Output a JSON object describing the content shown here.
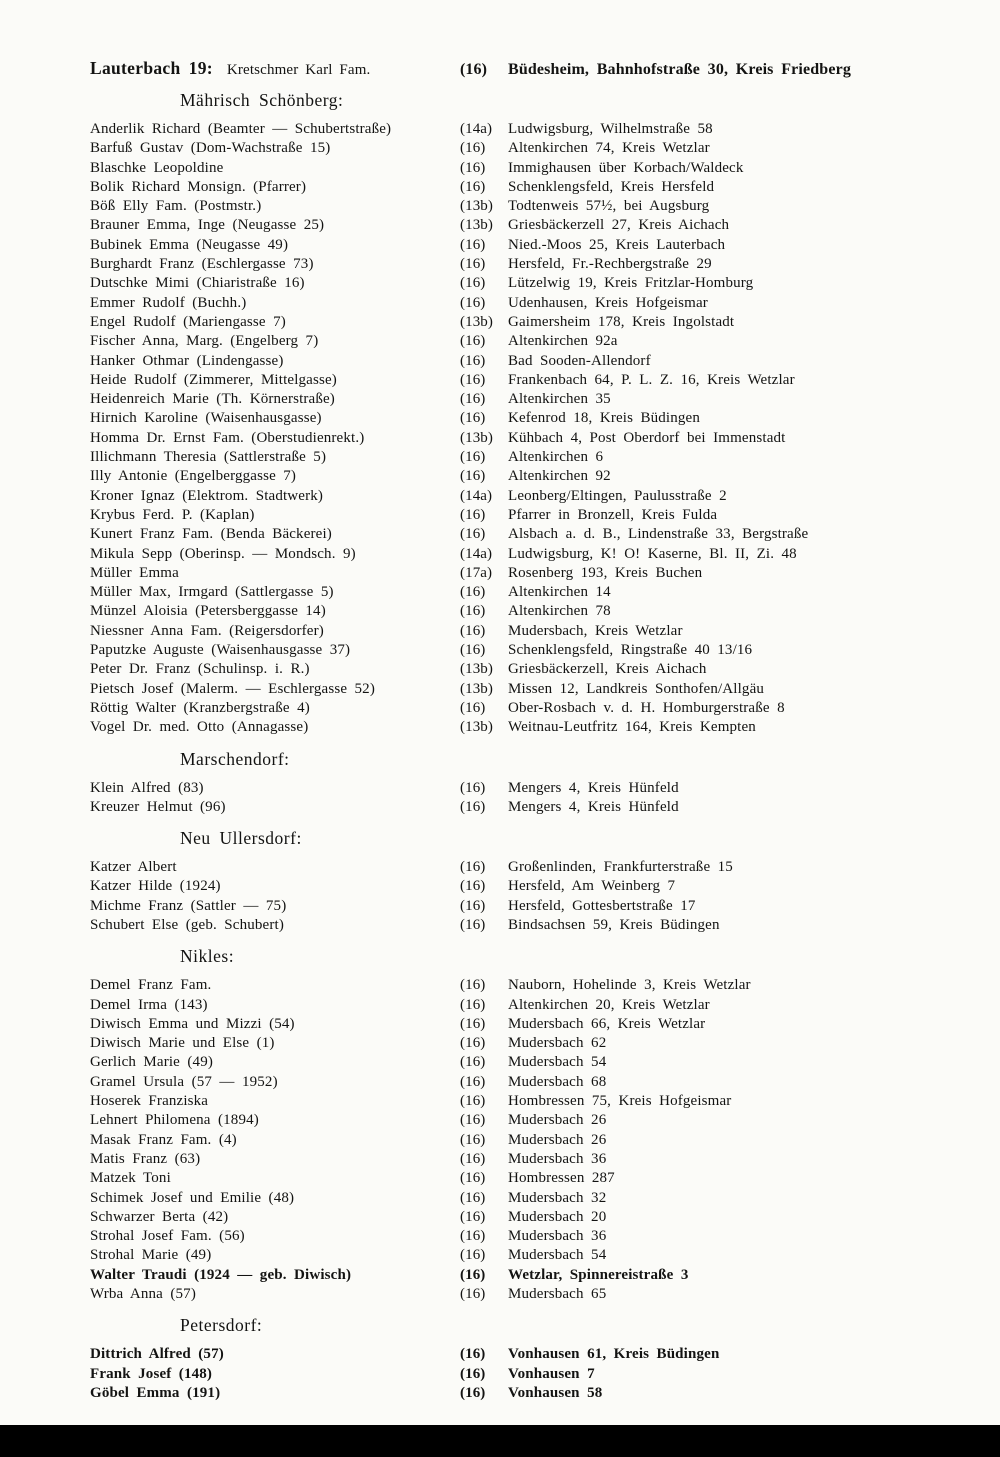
{
  "page": {
    "header": {
      "place_label": "Lauterbach 19:",
      "name": "Kretschmer Karl Fam.",
      "zone": "(16)",
      "address": "Büdesheim, Bahnhofstraße 30, Kreis Friedberg"
    },
    "sections": [
      {
        "title": "Mährisch Schönberg:",
        "entries": [
          {
            "name": "Anderlik Richard (Beamter — Schubertstraße)",
            "zone": "(14a)",
            "address": "Ludwigsburg, Wilhelmstraße 58"
          },
          {
            "name": "Barfuß Gustav (Dom-Wachstraße 15)",
            "zone": "(16)",
            "address": "Altenkirchen 74, Kreis Wetzlar"
          },
          {
            "name": "Blaschke Leopoldine",
            "zone": "(16)",
            "address": "Immighausen über Korbach/Waldeck"
          },
          {
            "name": "Bolik Richard Monsign. (Pfarrer)",
            "zone": "(16)",
            "address": "Schenklengsfeld, Kreis Hersfeld"
          },
          {
            "name": "Böß Elly Fam. (Postmstr.)",
            "zone": "(13b)",
            "address": "Todtenweis 57½, bei Augsburg"
          },
          {
            "name": "Brauner Emma, Inge (Neugasse 25)",
            "zone": "(13b)",
            "address": "Griesbäckerzell 27, Kreis Aichach"
          },
          {
            "name": "Bubinek Emma (Neugasse 49)",
            "zone": "(16)",
            "address": "Nied.-Moos 25, Kreis Lauterbach"
          },
          {
            "name": "Burghardt Franz (Eschlergasse 73)",
            "zone": "(16)",
            "address": "Hersfeld, Fr.-Rechbergstraße 29"
          },
          {
            "name": "Dutschke Mimi (Chiaristraße 16)",
            "zone": "(16)",
            "address": "Lützelwig 19, Kreis Fritzlar-Homburg"
          },
          {
            "name": "Emmer Rudolf (Buchh.)",
            "zone": "(16)",
            "address": "Udenhausen, Kreis Hofgeismar"
          },
          {
            "name": "Engel Rudolf (Mariengasse 7)",
            "zone": "(13b)",
            "address": "Gaimersheim 178, Kreis Ingolstadt"
          },
          {
            "name": "Fischer Anna, Marg. (Engelberg 7)",
            "zone": "(16)",
            "address": "Altenkirchen 92a"
          },
          {
            "name": "Hanker Othmar (Lindengasse)",
            "zone": "(16)",
            "address": "Bad Sooden-Allendorf"
          },
          {
            "name": "Heide Rudolf (Zimmerer, Mittelgasse)",
            "zone": "(16)",
            "address": "Frankenbach 64, P. L. Z. 16, Kreis Wetzlar"
          },
          {
            "name": "Heidenreich Marie (Th. Körnerstraße)",
            "zone": "(16)",
            "address": "Altenkirchen 35"
          },
          {
            "name": "Hirnich Karoline (Waisenhausgasse)",
            "zone": "(16)",
            "address": "Kefenrod 18, Kreis Büdingen"
          },
          {
            "name": "Homma Dr. Ernst Fam. (Oberstudienrekt.)",
            "zone": "(13b)",
            "address": "Kühbach 4, Post Oberdorf bei Immenstadt"
          },
          {
            "name": "Illichmann Theresia (Sattlerstraße 5)",
            "zone": "(16)",
            "address": "Altenkirchen 6"
          },
          {
            "name": "Illy Antonie (Engelberggasse 7)",
            "zone": "(16)",
            "address": "Altenkirchen 92"
          },
          {
            "name": "Kroner Ignaz (Elektrom. Stadtwerk)",
            "zone": "(14a)",
            "address": "Leonberg/Eltingen, Paulusstraße 2"
          },
          {
            "name": "Krybus Ferd. P. (Kaplan)",
            "zone": "(16)",
            "address": "Pfarrer in Bronzell, Kreis Fulda"
          },
          {
            "name": "Kunert Franz Fam. (Benda Bäckerei)",
            "zone": "(16)",
            "address": "Alsbach a. d. B., Lindenstraße 33, Bergstraße"
          },
          {
            "name": "Mikula Sepp (Oberinsp. — Mondsch. 9)",
            "zone": "(14a)",
            "address": "Ludwigsburg, K! O! Kaserne, Bl. II, Zi. 48"
          },
          {
            "name": "Müller Emma",
            "zone": "(17a)",
            "address": "Rosenberg 193, Kreis Buchen"
          },
          {
            "name": "Müller Max, Irmgard (Sattlergasse 5)",
            "zone": "(16)",
            "address": "Altenkirchen 14"
          },
          {
            "name": "Münzel Aloisia (Petersberggasse 14)",
            "zone": "(16)",
            "address": "Altenkirchen 78"
          },
          {
            "name": "Niessner Anna Fam. (Reigersdorfer)",
            "zone": "(16)",
            "address": "Mudersbach, Kreis Wetzlar"
          },
          {
            "name": "Paputzke Auguste (Waisenhausgasse 37)",
            "zone": "(16)",
            "address": "Schenklengsfeld, Ringstraße 40 13/16"
          },
          {
            "name": "Peter Dr. Franz (Schulinsp. i. R.)",
            "zone": "(13b)",
            "address": "Griesbäckerzell, Kreis Aichach"
          },
          {
            "name": "Pietsch Josef (Malerm. — Eschlergasse 52)",
            "zone": "(13b)",
            "address": "Missen 12, Landkreis Sonthofen/Allgäu"
          },
          {
            "name": "Röttig Walter (Kranzbergstraße 4)",
            "zone": "(16)",
            "address": "Ober-Rosbach v. d. H. Homburgerstraße 8"
          },
          {
            "name": "Vogel Dr. med. Otto (Annagasse)",
            "zone": "(13b)",
            "address": "Weitnau-Leutfritz 164, Kreis Kempten"
          }
        ]
      },
      {
        "title": "Marschendorf:",
        "entries": [
          {
            "name": "Klein Alfred (83)",
            "zone": "(16)",
            "address": "Mengers 4, Kreis Hünfeld"
          },
          {
            "name": "Kreuzer Helmut (96)",
            "zone": "(16)",
            "address": "Mengers 4, Kreis Hünfeld"
          }
        ]
      },
      {
        "title": "Neu Ullersdorf:",
        "entries": [
          {
            "name": "Katzer Albert",
            "zone": "(16)",
            "address": "Großenlinden, Frankfurterstraße 15"
          },
          {
            "name": "Katzer Hilde (1924)",
            "zone": "(16)",
            "address": "Hersfeld, Am Weinberg 7"
          },
          {
            "name": "Michme Franz (Sattler — 75)",
            "zone": "(16)",
            "address": "Hersfeld, Gottesbertstraße 17"
          },
          {
            "name": "Schubert Else (geb. Schubert)",
            "zone": "(16)",
            "address": "Bindsachsen 59, Kreis Büdingen"
          }
        ]
      },
      {
        "title": "Nikles:",
        "entries": [
          {
            "name": "Demel Franz Fam.",
            "zone": "(16)",
            "address": "Nauborn, Hohelinde 3, Kreis Wetzlar"
          },
          {
            "name": "Demel Irma (143)",
            "zone": "(16)",
            "address": "Altenkirchen 20, Kreis Wetzlar"
          },
          {
            "name": "Diwisch Emma und Mizzi (54)",
            "zone": "(16)",
            "address": "Mudersbach 66, Kreis Wetzlar"
          },
          {
            "name": "Diwisch Marie und Else (1)",
            "zone": "(16)",
            "address": "Mudersbach 62"
          },
          {
            "name": "Gerlich Marie (49)",
            "zone": "(16)",
            "address": "Mudersbach 54"
          },
          {
            "name": "Gramel Ursula (57 — 1952)",
            "zone": "(16)",
            "address": "Mudersbach 68"
          },
          {
            "name": "Hoserek Franziska",
            "zone": "(16)",
            "address": "Hombressen 75, Kreis Hofgeismar"
          },
          {
            "name": "Lehnert Philomena (1894)",
            "zone": "(16)",
            "address": "Mudersbach 26"
          },
          {
            "name": "Masak Franz Fam. (4)",
            "zone": "(16)",
            "address": "Mudersbach 26"
          },
          {
            "name": "Matis Franz (63)",
            "zone": "(16)",
            "address": "Mudersbach 36"
          },
          {
            "name": "Matzek Toni",
            "zone": "(16)",
            "address": "Hombressen 287"
          },
          {
            "name": "Schimek Josef und Emilie (48)",
            "zone": "(16)",
            "address": "Mudersbach 32"
          },
          {
            "name": "Schwarzer Berta (42)",
            "zone": "(16)",
            "address": "Mudersbach 20"
          },
          {
            "name": "Strohal Josef Fam. (56)",
            "zone": "(16)",
            "address": "Mudersbach 36"
          },
          {
            "name": "Strohal Marie (49)",
            "zone": "(16)",
            "address": "Mudersbach 54"
          },
          {
            "name": "Walter Traudi (1924 — geb. Diwisch)",
            "zone": "(16)",
            "address": "Wetzlar, Spinnereistraße 3",
            "bold": true
          },
          {
            "name": "Wrba Anna (57)",
            "zone": "(16)",
            "address": "Mudersbach 65"
          }
        ]
      },
      {
        "title": "Petersdorf:",
        "bold": true,
        "entries": [
          {
            "name": "Dittrich Alfred (57)",
            "zone": "(16)",
            "address": "Vonhausen 61, Kreis Büdingen"
          },
          {
            "name": "Frank Josef (148)",
            "zone": "(16)",
            "address": "Vonhausen 7"
          },
          {
            "name": "Göbel Emma (191)",
            "zone": "(16)",
            "address": "Vonhausen 58"
          }
        ]
      }
    ]
  }
}
